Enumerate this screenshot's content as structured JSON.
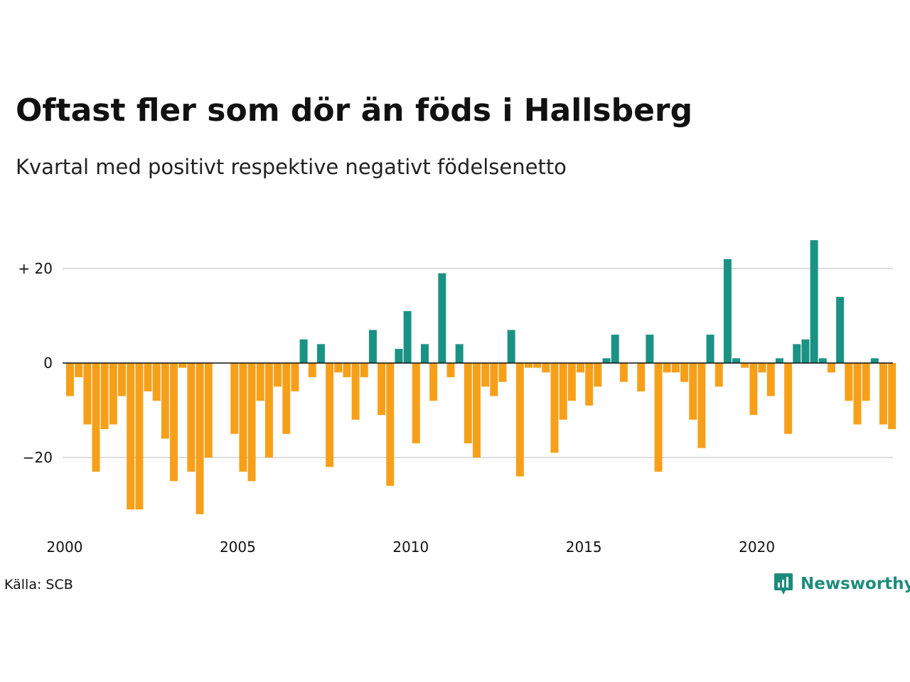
{
  "title": "Oftast fler som dör än föds i Hallsberg",
  "subtitle": "Kvartal med positivt respektive negativt födelsenetto",
  "source": "Källa: SCB",
  "brand": {
    "name": "Newsworthy",
    "icon": "newsworthy-logo-icon"
  },
  "colors": {
    "positive": "#1a9384",
    "negative": "#f6a01a",
    "grid": "#dddddd",
    "zero": "#111111"
  },
  "chart_data": {
    "type": "bar",
    "x_start_year": 2000,
    "x_ticks": [
      "2000",
      "2005",
      "2010",
      "2015",
      "2020"
    ],
    "y_ticks": [
      {
        "value": 20,
        "label": "+ 20"
      },
      {
        "value": 0,
        "label": "0"
      },
      {
        "value": -20,
        "label": "−20"
      }
    ],
    "ylim": [
      -33,
      28
    ],
    "grid": true,
    "values": [
      -7,
      -3,
      -13,
      -23,
      -14,
      -13,
      -7,
      -31,
      -31,
      -6,
      -8,
      -16,
      -25,
      -1,
      -23,
      -32,
      -20,
      0,
      0,
      -15,
      -23,
      -25,
      -8,
      -20,
      -5,
      -15,
      -6,
      5,
      -3,
      4,
      -22,
      -2,
      -3,
      -12,
      -3,
      7,
      -11,
      -26,
      3,
      11,
      -17,
      4,
      -8,
      19,
      -3,
      4,
      -17,
      -20,
      -5,
      -7,
      -4,
      7,
      -24,
      -1,
      -1,
      -2,
      -19,
      -12,
      -8,
      -2,
      -9,
      -5,
      1,
      6,
      -4,
      0,
      -6,
      6,
      -23,
      -2,
      -2,
      -4,
      -12,
      -18,
      6,
      -5,
      22,
      1,
      -1,
      -11,
      -2,
      -7,
      1,
      -15,
      4,
      5,
      26,
      1,
      -2,
      14,
      -8,
      -13,
      -8,
      1,
      -13,
      -14
    ]
  }
}
